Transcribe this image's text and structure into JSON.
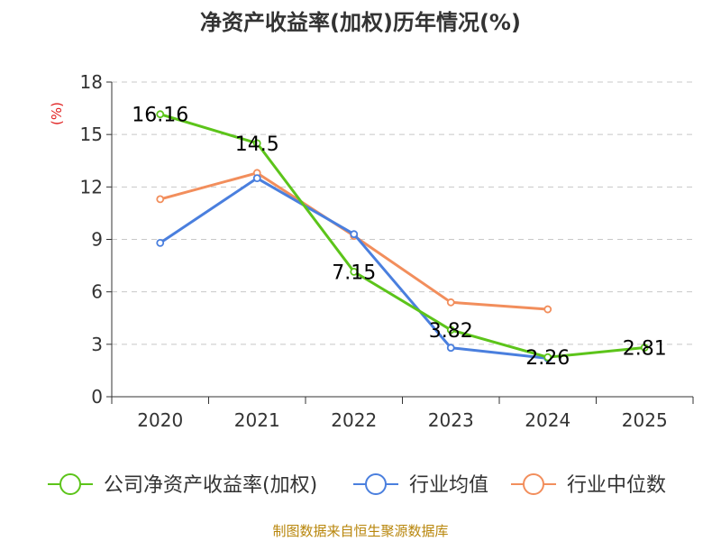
{
  "chart_data": {
    "type": "line",
    "title": "净资产收益率(加权)历年情况(%)",
    "ylabel": "(%)",
    "categories": [
      "2020",
      "2021",
      "2022",
      "2023",
      "2024",
      "2025"
    ],
    "ylim": [
      0,
      18
    ],
    "yticks": [
      0,
      3,
      6,
      9,
      12,
      15,
      18
    ],
    "grid": true,
    "legend_position": "bottom",
    "series": [
      {
        "name": "公司净资产收益率(加权)",
        "color": "#5cc41a",
        "values": [
          16.16,
          14.5,
          7.15,
          3.82,
          2.26,
          2.81
        ],
        "labels": [
          "16.16",
          "14.5",
          "7.15",
          "3.82",
          "2.26",
          "2.81"
        ]
      },
      {
        "name": "行业均值",
        "color": "#4a7fde",
        "values": [
          8.8,
          12.5,
          9.3,
          2.8,
          2.2,
          null
        ]
      },
      {
        "name": "行业中位数",
        "color": "#f28e5c",
        "values": [
          11.3,
          12.8,
          9.2,
          5.4,
          5.0,
          null
        ]
      }
    ]
  },
  "footer": {
    "source": "制图数据来自恒生聚源数据库"
  }
}
